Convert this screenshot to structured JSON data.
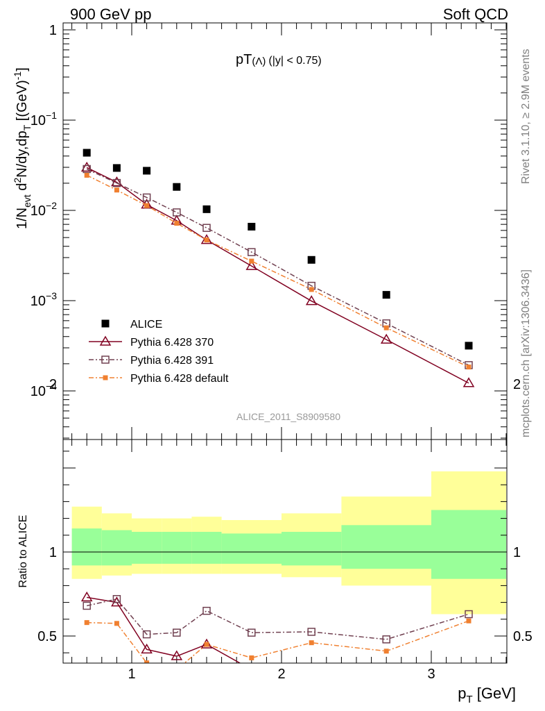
{
  "header": {
    "left_title": "900 GeV pp",
    "right_title": "Soft QCD"
  },
  "side_text": {
    "rivet": "Rivet 3.1.10, ≥ 2.9M events",
    "mcplots": "mcplots.cern.ch [arXiv:1306.3436]"
  },
  "chart_data": [
    {
      "type": "scatter",
      "title_main": "pT",
      "title_sub": "(Λ)",
      "title_cut": "(|y| < 0.75)",
      "ylabel_parts": [
        "1/N",
        "evt",
        " d",
        "2",
        "N/dy,dp",
        "T",
        " [(GeV)",
        "-1",
        "]"
      ],
      "watermark": "ALICE_2011_S8909580",
      "yscale": "log",
      "ylim": [
        3e-05,
        1
      ],
      "xlim": [
        0.55,
        3.55
      ],
      "y_tick_labels": [
        {
          "value": 1,
          "base": "1",
          "exp": ""
        },
        {
          "value": 0.1,
          "base": "10",
          "exp": "−1"
        },
        {
          "value": 0.01,
          "base": "10",
          "exp": "−2"
        },
        {
          "value": 0.001,
          "base": "10",
          "exp": "−3"
        },
        {
          "value": 0.0001,
          "base": "10",
          "exp": "−4"
        }
      ],
      "legend_position": "middle-left",
      "series": [
        {
          "name": "ALICE",
          "marker": "filled-square",
          "color": "#000000",
          "line": "none",
          "x": [
            0.7,
            0.9,
            1.1,
            1.3,
            1.5,
            1.8,
            2.2,
            2.7,
            3.25
          ],
          "y": [
            0.0435,
            0.0295,
            0.0275,
            0.0182,
            0.0103,
            0.0066,
            0.00283,
            0.00116,
            0.000317
          ]
        },
        {
          "name": "Pythia 6.428 370",
          "marker": "open-triangle",
          "color": "#800020",
          "line": "solid",
          "x": [
            0.7,
            0.9,
            1.1,
            1.3,
            1.5,
            1.8,
            2.2,
            2.7,
            3.25
          ],
          "y": [
            0.0298,
            0.0205,
            0.0116,
            0.0077,
            0.0047,
            0.00242,
            0.00099,
            0.00037,
            0.000122
          ]
        },
        {
          "name": "Pythia 6.428 391",
          "marker": "open-square",
          "color": "#704050",
          "line": "dashdot",
          "x": [
            0.7,
            0.9,
            1.1,
            1.3,
            1.5,
            1.8,
            2.2,
            2.7,
            3.25
          ],
          "y": [
            0.0287,
            0.0201,
            0.0139,
            0.0095,
            0.0064,
            0.00345,
            0.00146,
            0.00056,
            0.000193
          ]
        },
        {
          "name": "Pythia 6.428 default",
          "marker": "filled-small-square",
          "color": "#f08030",
          "line": "dashdot",
          "x": [
            0.7,
            0.9,
            1.1,
            1.3,
            1.5,
            1.8,
            2.2,
            2.7,
            3.25
          ],
          "y": [
            0.0245,
            0.0168,
            0.0113,
            0.0072,
            0.0047,
            0.00274,
            0.00133,
            0.0005,
            0.000184
          ]
        }
      ]
    },
    {
      "type": "scatter",
      "ylabel": "Ratio to ALICE",
      "xlabel_main": "p",
      "xlabel_sub": "T",
      "xlabel_unit": " [GeV]",
      "ylim": [
        0.33,
        2.35
      ],
      "xlim": [
        0.55,
        3.55
      ],
      "x_tick_labels": [
        "1",
        "2",
        "3"
      ],
      "x_tick_values": [
        1,
        2,
        3
      ],
      "y_tick_labels": [
        "0.5",
        "1",
        "2"
      ],
      "y_tick_values": [
        0.5,
        1,
        2
      ],
      "reference_line": 1,
      "colors": {
        "inner_band": "#99ff99",
        "outer_band": "#ffff99",
        "line370": "#800020",
        "line391": "#704050",
        "line_default": "#f08030"
      },
      "bands": [
        {
          "x0": 0.6,
          "x1": 0.8,
          "inner": [
            0.92,
            1.14
          ],
          "outer": [
            0.84,
            1.27
          ]
        },
        {
          "x0": 0.8,
          "x1": 1.0,
          "inner": [
            0.92,
            1.13
          ],
          "outer": [
            0.86,
            1.23
          ]
        },
        {
          "x0": 1.0,
          "x1": 1.2,
          "inner": [
            0.93,
            1.12
          ],
          "outer": [
            0.87,
            1.2
          ]
        },
        {
          "x0": 1.2,
          "x1": 1.4,
          "inner": [
            0.93,
            1.12
          ],
          "outer": [
            0.87,
            1.2
          ]
        },
        {
          "x0": 1.4,
          "x1": 1.6,
          "inner": [
            0.93,
            1.12
          ],
          "outer": [
            0.87,
            1.21
          ]
        },
        {
          "x0": 1.6,
          "x1": 2.0,
          "inner": [
            0.93,
            1.11
          ],
          "outer": [
            0.87,
            1.19
          ]
        },
        {
          "x0": 2.0,
          "x1": 2.4,
          "inner": [
            0.92,
            1.12
          ],
          "outer": [
            0.85,
            1.23
          ]
        },
        {
          "x0": 2.4,
          "x1": 3.0,
          "inner": [
            0.9,
            1.16
          ],
          "outer": [
            0.8,
            1.33
          ]
        },
        {
          "x0": 3.0,
          "x1": 3.5,
          "inner": [
            0.84,
            1.25
          ],
          "outer": [
            0.63,
            1.48
          ]
        }
      ],
      "ratio_series": [
        {
          "name": "Pythia 6.428 370",
          "x": [
            0.7,
            0.9,
            1.1,
            1.3,
            1.5,
            1.8
          ],
          "y": [
            0.73,
            0.7,
            0.42,
            0.38,
            0.45,
            0.3
          ]
        },
        {
          "name": "Pythia 6.428 391",
          "x": [
            0.7,
            0.9,
            1.1,
            1.3,
            1.5,
            1.8,
            2.2,
            2.7,
            3.25
          ],
          "y": [
            0.68,
            0.72,
            0.51,
            0.52,
            0.65,
            0.52,
            0.525,
            0.48,
            0.63
          ]
        },
        {
          "name": "Pythia 6.428 default",
          "x": [
            0.7,
            0.9,
            1.1,
            1.3,
            1.5,
            1.8,
            2.2,
            2.7,
            3.25
          ],
          "y": [
            0.58,
            0.575,
            0.34,
            0.3,
            0.45,
            0.37,
            0.46,
            0.41,
            0.59
          ]
        }
      ]
    }
  ]
}
